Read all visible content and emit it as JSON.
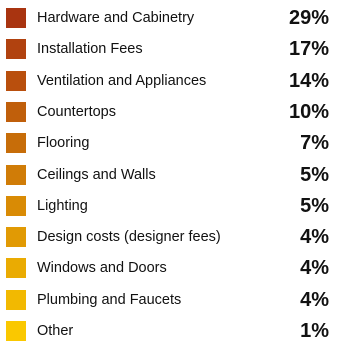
{
  "chart_data": {
    "type": "table",
    "legend_placement": "list",
    "items": [
      {
        "label": "Hardware and Cabinetry",
        "value": "29%",
        "color": "#a93410"
      },
      {
        "label": "Installation Fees",
        "value": "17%",
        "color": "#b1420f"
      },
      {
        "label": "Ventilation and Appliances",
        "value": "14%",
        "color": "#b94f0d"
      },
      {
        "label": "Countertops",
        "value": "10%",
        "color": "#c05f0b"
      },
      {
        "label": "Flooring",
        "value": "7%",
        "color": "#c76d09"
      },
      {
        "label": "Ceilings and Walls",
        "value": "5%",
        "color": "#d07c07"
      },
      {
        "label": "Lighting",
        "value": "5%",
        "color": "#d98b05"
      },
      {
        "label": "Design costs (designer fees)",
        "value": "4%",
        "color": "#e19a04"
      },
      {
        "label": "Windows and Doors",
        "value": "4%",
        "color": "#eaab02"
      },
      {
        "label": "Plumbing and Faucets",
        "value": "4%",
        "color": "#f2b901"
      },
      {
        "label": "Other",
        "value": "1%",
        "color": "#fac800"
      }
    ]
  }
}
